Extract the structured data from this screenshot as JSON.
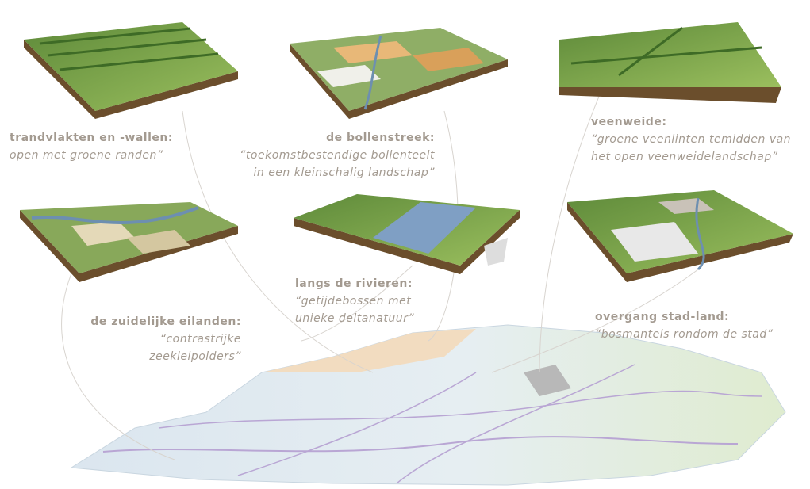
{
  "panels": [
    {
      "title": "trandvlakten en -wallen:",
      "quote": [
        "open met groene randen”"
      ]
    },
    {
      "title": "de bollenstreek:",
      "quote": [
        "“toekomstbestendige bollenteelt",
        "in een kleinschalig landschap”"
      ]
    },
    {
      "title": "veenweide:",
      "quote": [
        "“groene veenlinten temidden van",
        "het open veenweidelandschap”"
      ]
    },
    {
      "title": "de zuidelijke eilanden:",
      "quote": [
        "“contrastrijke",
        "zeekleipolders”"
      ]
    },
    {
      "title": "langs de rivieren:",
      "quote": [
        "“getijdebossen met",
        "unieke deltanatuur”"
      ]
    },
    {
      "title": "overgang stad-land:",
      "quote": [
        "“bosmantels rondom de stad”"
      ]
    }
  ]
}
